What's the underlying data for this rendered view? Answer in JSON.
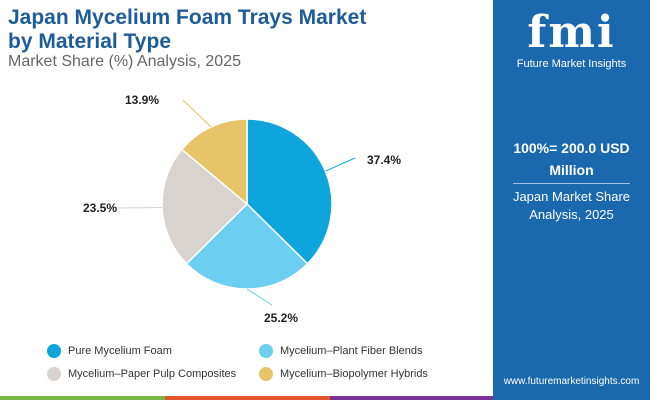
{
  "header": {
    "title_line1": "Japan Mycelium Foam Trays Market",
    "title_line2": "by Material Type",
    "subtitle": "Market Share (%) Analysis, 2025"
  },
  "brand": {
    "logo_text": "fmi",
    "name": "Future Market Insights",
    "url": "www.futuremarketinsights.com"
  },
  "side": {
    "total": "100%= 200.0 USD Million",
    "share_label": "Japan Market Share Analysis, 2025"
  },
  "colors": {
    "accent": "#1a68ad",
    "title": "#1e5c99"
  },
  "chart_data": {
    "type": "pie",
    "title": "Japan Mycelium Foam Trays Market by Material Type",
    "categories": [
      "Pure Mycelium Foam",
      "Mycelium–Plant Fiber Blends",
      "Mycelium–Paper Pulp Composites",
      "Mycelium–Biopolymer Hybrids"
    ],
    "values": [
      37.4,
      25.2,
      23.5,
      13.9
    ],
    "labels": [
      "37.4%",
      "25.2%",
      "23.5%",
      "13.9%"
    ],
    "colors": [
      "#0ea5dc",
      "#6dcff0",
      "#d9d3cf",
      "#e8c468"
    ],
    "legend": "bottom"
  }
}
